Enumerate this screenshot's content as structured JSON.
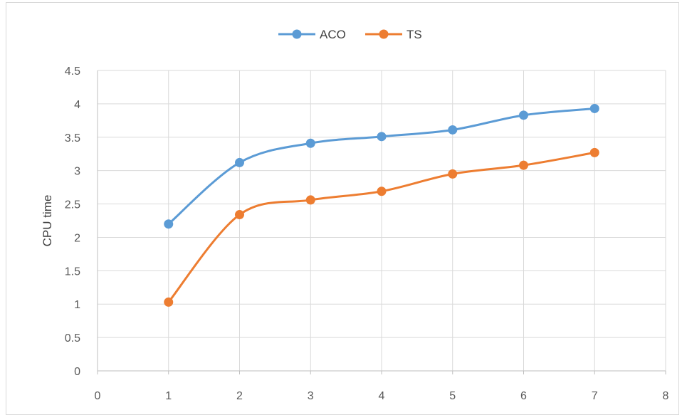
{
  "chart_data": {
    "type": "line",
    "title": "",
    "xlabel": "",
    "ylabel": "CPU time",
    "xlim": [
      0,
      8
    ],
    "ylim": [
      0,
      4.5
    ],
    "x_ticks": [
      0,
      1,
      2,
      3,
      4,
      5,
      6,
      7,
      8
    ],
    "y_ticks": [
      0,
      0.5,
      1,
      1.5,
      2,
      2.5,
      3,
      3.5,
      4,
      4.5
    ],
    "grid": "vertical and horizontal",
    "legend_position": "top",
    "smooth": true,
    "series": [
      {
        "name": "ACO",
        "color": "#5b9bd5",
        "marker": "circle",
        "x": [
          1,
          2,
          3,
          4,
          5,
          6,
          7
        ],
        "values": [
          2.2,
          3.12,
          3.41,
          3.51,
          3.61,
          3.83,
          3.93
        ]
      },
      {
        "name": "TS",
        "color": "#ed7d31",
        "marker": "circle",
        "x": [
          1,
          2,
          3,
          4,
          5,
          6,
          7
        ],
        "values": [
          1.03,
          2.34,
          2.56,
          2.69,
          2.95,
          3.08,
          3.27
        ]
      }
    ]
  }
}
